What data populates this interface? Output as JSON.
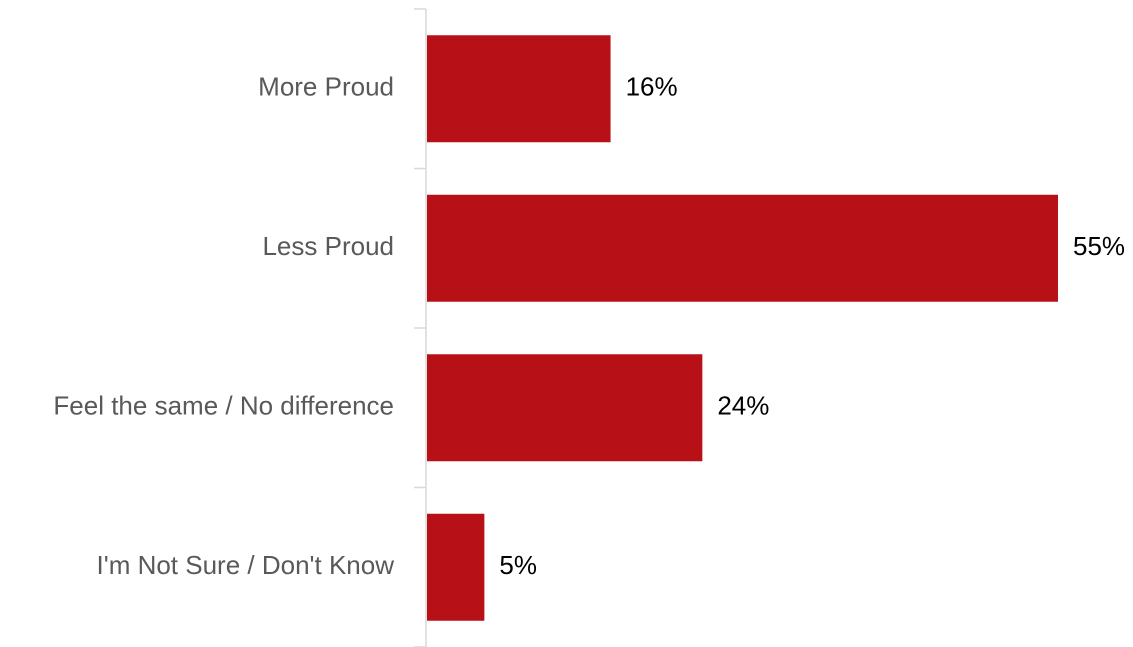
{
  "chart_data": {
    "type": "bar",
    "orientation": "horizontal",
    "categories": [
      "More Proud",
      "Less Proud",
      "Feel the same / No difference",
      "I'm Not Sure / Don't Know"
    ],
    "values": [
      16,
      55,
      24,
      5
    ],
    "value_labels": [
      "16%",
      "55%",
      "24%",
      "5%"
    ],
    "xlim": [
      0,
      55
    ],
    "grid": false,
    "legend": "none",
    "bar_color": "#B71016",
    "axis_color": "#D9D9D9"
  }
}
